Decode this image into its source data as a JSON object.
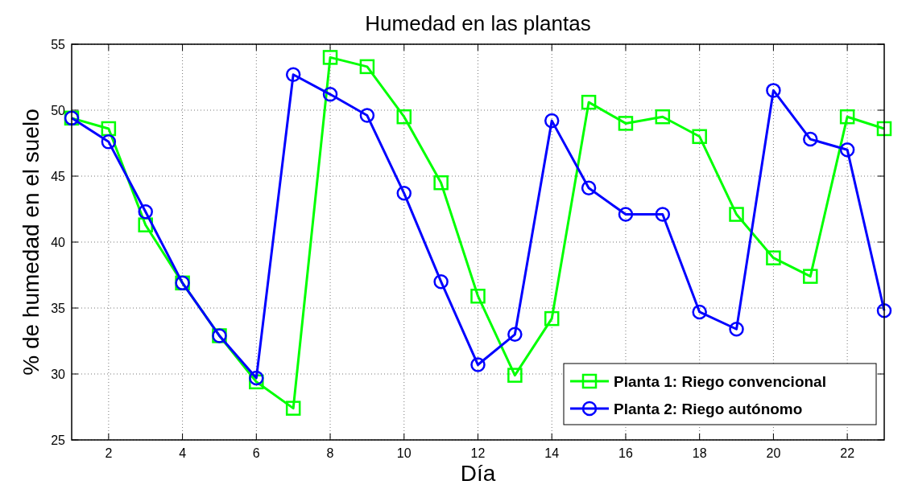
{
  "chart_data": {
    "type": "line",
    "title": "Humedad en las plantas",
    "xlabel": "Día",
    "ylabel": "% de humedad en el suelo",
    "x": [
      1,
      2,
      3,
      4,
      5,
      6,
      7,
      8,
      9,
      10,
      11,
      12,
      13,
      14,
      15,
      16,
      17,
      18,
      19,
      20,
      21,
      22,
      23
    ],
    "xlim": [
      1,
      23
    ],
    "xticks": [
      2,
      4,
      6,
      8,
      10,
      12,
      14,
      16,
      18,
      20,
      22
    ],
    "ylim": [
      25,
      55
    ],
    "yticks": [
      25,
      30,
      35,
      40,
      45,
      50,
      55
    ],
    "grid": true,
    "legend": "bottom right",
    "line_style": "solid",
    "series": [
      {
        "name": "Planta 1: Riego convencional",
        "color": "#00ff00",
        "marker": "square",
        "values": [
          49.4,
          48.6,
          41.3,
          36.9,
          32.9,
          29.4,
          27.4,
          54.0,
          53.3,
          49.5,
          44.5,
          35.9,
          29.9,
          34.2,
          50.6,
          49.0,
          49.5,
          48.0,
          42.1,
          38.8,
          37.4,
          49.5,
          48.6
        ]
      },
      {
        "name": "Planta 2: Riego autónomo",
        "color": "#0000ff",
        "marker": "circle",
        "values": [
          49.4,
          47.6,
          42.3,
          36.9,
          32.9,
          29.7,
          52.7,
          51.2,
          49.6,
          43.7,
          37.0,
          30.7,
          33.0,
          49.2,
          44.1,
          42.1,
          42.1,
          34.7,
          33.4,
          51.5,
          47.8,
          47.0,
          34.8
        ]
      }
    ]
  }
}
